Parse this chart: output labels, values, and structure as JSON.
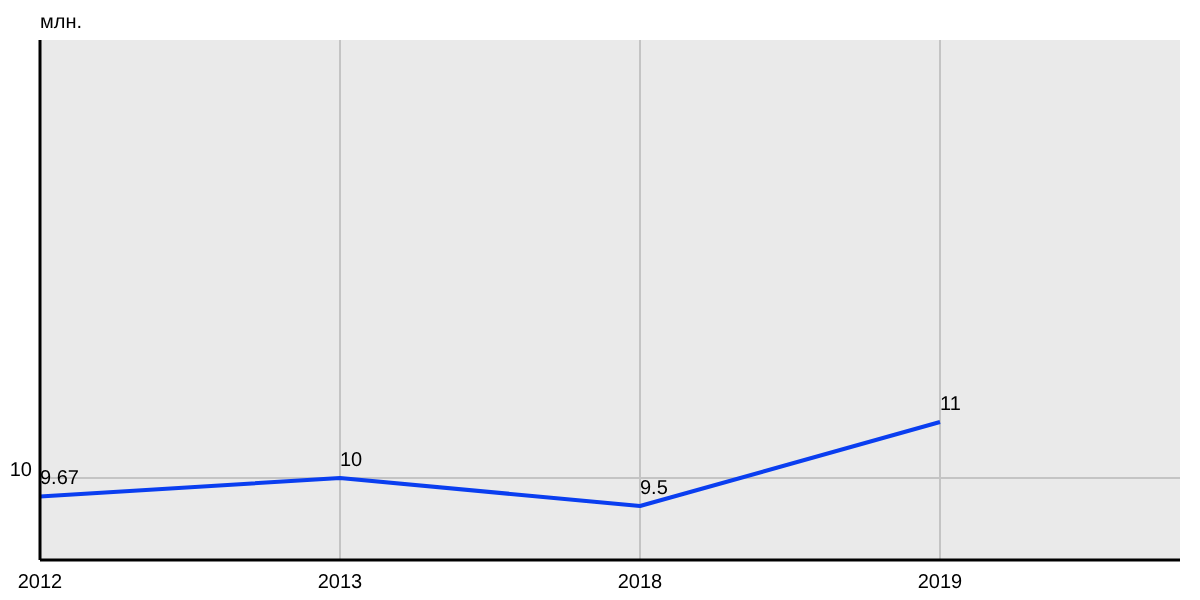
{
  "chart_data": {
    "type": "line",
    "annotations": [
      "млн."
    ],
    "categories": [
      "2012",
      "2013",
      "2018",
      "2019"
    ],
    "series": [
      {
        "color": "#0a3ef0",
        "values": [
          9.67,
          10,
          9.5,
          11
        ]
      }
    ],
    "ref_lines": [
      {
        "axis": "y",
        "value": 10,
        "label": "10",
        "color": "#c4c4c4"
      }
    ],
    "grid": "x",
    "data_labels": true,
    "marker": "none",
    "line_style": "solid"
  }
}
